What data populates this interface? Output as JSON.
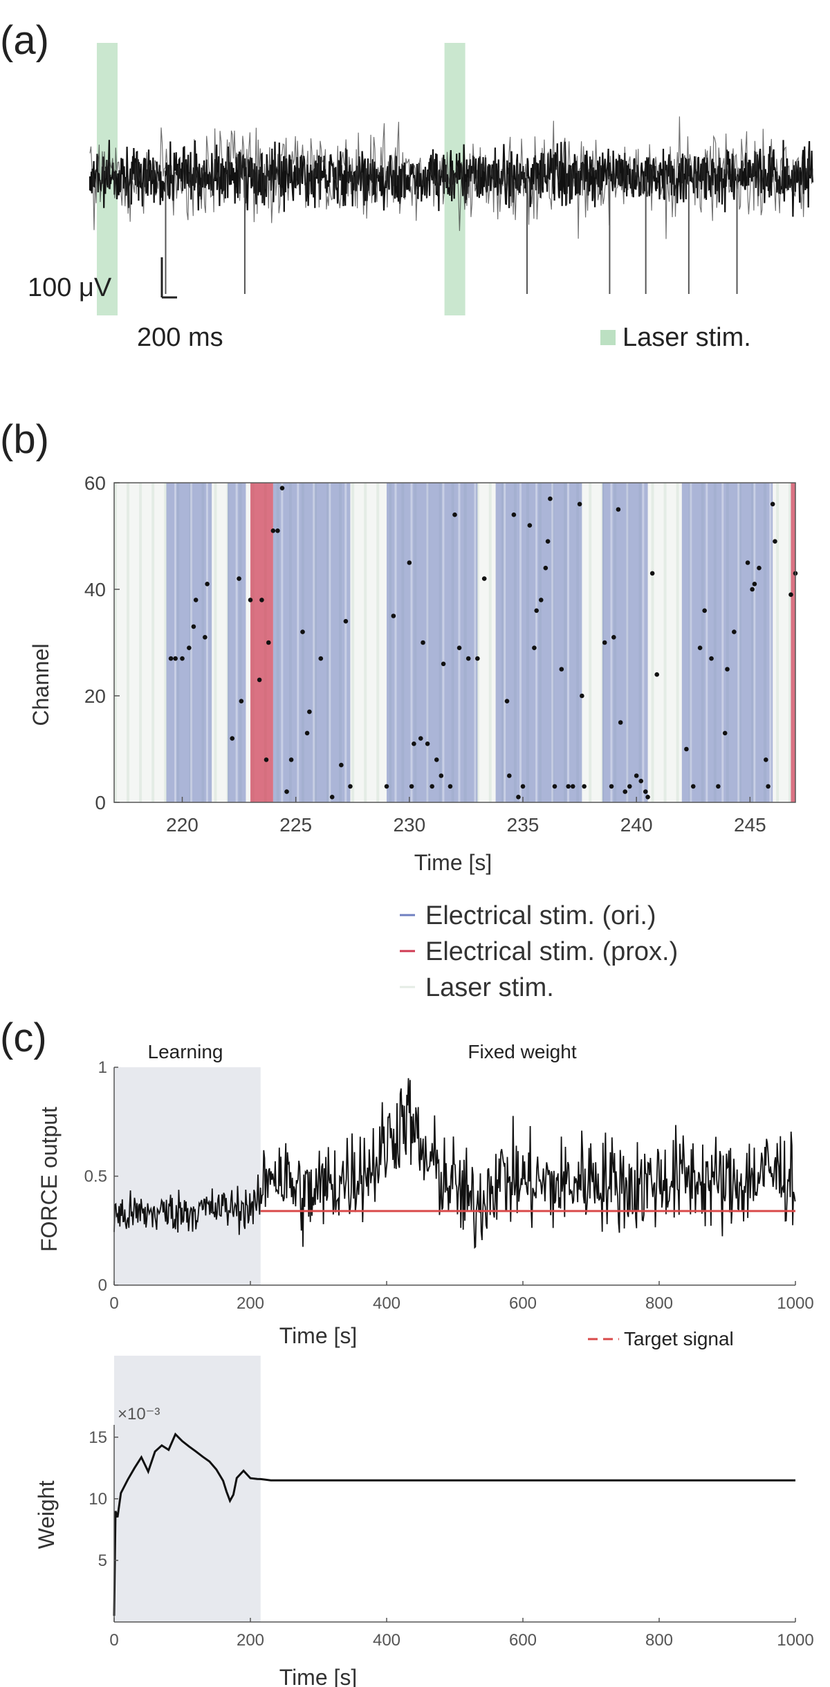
{
  "panels": {
    "a": {
      "label": "(a)"
    },
    "b": {
      "label": "(b)"
    },
    "c": {
      "label": "(c)"
    }
  },
  "colors": {
    "trace": "#111111",
    "laser": "#9fd3a8",
    "elec_ori": "#6f7fc0",
    "elec_prox": "#cf3a52",
    "laser_light": "#e4ece5",
    "target": "#d94a4a",
    "learning_bg": "#e7e9ee"
  },
  "chart_data": [
    {
      "id": "a",
      "type": "line",
      "description_units": "voltage trace",
      "scale_bar": {
        "voltage_label": "100 μV",
        "time_label": "200 ms"
      },
      "laser_stim_label": "Laser stim.",
      "laser_stim_times_ms": [
        0,
        2020
      ],
      "spike_times_ms": [
        440,
        900,
        2540,
        3020,
        3230,
        3480,
        3760
      ],
      "duration_ms": 4200
    },
    {
      "id": "b",
      "type": "scatter",
      "xlabel": "Time [s]",
      "ylabel": "Channel",
      "xlim": [
        217,
        247
      ],
      "ylim": [
        0,
        60
      ],
      "xticks": [
        220,
        225,
        230,
        235,
        240,
        245
      ],
      "yticks": [
        0,
        20,
        40,
        60
      ],
      "legend": [
        {
          "label": "Electrical stim. (ori.)",
          "color_key": "elec_ori"
        },
        {
          "label": "Electrical stim. (prox.)",
          "color_key": "elec_prox"
        },
        {
          "label": "Laser stim.",
          "color_key": "laser_light"
        }
      ],
      "elec_ori_blocks": [
        [
          219.3,
          221.3
        ],
        [
          222.0,
          222.8
        ],
        [
          224.0,
          227.4
        ],
        [
          229.0,
          233.0
        ],
        [
          233.8,
          237.6
        ],
        [
          238.5,
          240.5
        ],
        [
          242.0,
          246.0
        ]
      ],
      "elec_prox_blocks": [
        [
          223.0,
          224.0
        ],
        [
          246.8,
          247.0
        ]
      ],
      "points": [
        [
          219.5,
          27
        ],
        [
          219.7,
          27
        ],
        [
          220.0,
          27
        ],
        [
          220.3,
          29
        ],
        [
          220.5,
          33
        ],
        [
          220.6,
          38
        ],
        [
          221.0,
          31
        ],
        [
          221.1,
          41
        ],
        [
          222.2,
          12
        ],
        [
          222.5,
          42
        ],
        [
          222.6,
          19
        ],
        [
          223.0,
          38
        ],
        [
          223.4,
          23
        ],
        [
          223.5,
          38
        ],
        [
          223.7,
          8
        ],
        [
          223.8,
          30
        ],
        [
          224.0,
          51
        ],
        [
          224.2,
          51
        ],
        [
          224.4,
          59
        ],
        [
          224.6,
          2
        ],
        [
          224.8,
          8
        ],
        [
          225.3,
          32
        ],
        [
          225.5,
          13
        ],
        [
          225.6,
          17
        ],
        [
          226.1,
          27
        ],
        [
          226.6,
          1
        ],
        [
          227.0,
          7
        ],
        [
          227.2,
          34
        ],
        [
          227.4,
          3
        ],
        [
          229.0,
          3
        ],
        [
          229.3,
          35
        ],
        [
          230.0,
          45
        ],
        [
          230.1,
          3
        ],
        [
          230.2,
          11
        ],
        [
          230.5,
          12
        ],
        [
          230.6,
          30
        ],
        [
          230.8,
          11
        ],
        [
          231.0,
          3
        ],
        [
          231.2,
          8
        ],
        [
          231.4,
          5
        ],
        [
          231.5,
          26
        ],
        [
          231.8,
          3
        ],
        [
          232.0,
          54
        ],
        [
          232.2,
          29
        ],
        [
          232.6,
          27
        ],
        [
          233.0,
          27
        ],
        [
          233.3,
          42
        ],
        [
          234.3,
          19
        ],
        [
          234.4,
          5
        ],
        [
          234.6,
          54
        ],
        [
          234.8,
          1
        ],
        [
          235.0,
          3
        ],
        [
          235.3,
          52
        ],
        [
          235.5,
          29
        ],
        [
          235.6,
          36
        ],
        [
          235.8,
          38
        ],
        [
          236.0,
          44
        ],
        [
          236.1,
          49
        ],
        [
          236.2,
          57
        ],
        [
          236.4,
          3
        ],
        [
          236.7,
          25
        ],
        [
          237.0,
          3
        ],
        [
          237.2,
          3
        ],
        [
          237.5,
          56
        ],
        [
          237.6,
          20
        ],
        [
          237.7,
          3
        ],
        [
          238.6,
          30
        ],
        [
          238.9,
          3
        ],
        [
          239.0,
          31
        ],
        [
          239.2,
          55
        ],
        [
          239.3,
          15
        ],
        [
          239.5,
          2
        ],
        [
          239.7,
          3
        ],
        [
          240.0,
          5
        ],
        [
          240.2,
          4
        ],
        [
          240.4,
          2
        ],
        [
          240.5,
          1
        ],
        [
          240.7,
          43
        ],
        [
          240.9,
          24
        ],
        [
          242.2,
          10
        ],
        [
          242.5,
          3
        ],
        [
          242.8,
          29
        ],
        [
          243.0,
          36
        ],
        [
          243.3,
          27
        ],
        [
          243.6,
          3
        ],
        [
          243.9,
          13
        ],
        [
          244.0,
          25
        ],
        [
          244.3,
          32
        ],
        [
          244.9,
          45
        ],
        [
          245.1,
          40
        ],
        [
          245.2,
          41
        ],
        [
          245.4,
          44
        ],
        [
          245.7,
          8
        ],
        [
          245.8,
          3
        ],
        [
          246.0,
          56
        ],
        [
          246.1,
          49
        ],
        [
          246.8,
          39
        ],
        [
          247.0,
          43
        ]
      ]
    },
    {
      "id": "c-top",
      "type": "line",
      "xlabel": "Time [s]",
      "ylabel": "FORCE output",
      "xlim": [
        0,
        1000
      ],
      "ylim": [
        0,
        1
      ],
      "xticks": [
        0,
        200,
        400,
        600,
        800,
        1000
      ],
      "yticks": [
        "0",
        "0.5",
        "1"
      ],
      "phase_labels": {
        "learning": "Learning",
        "fixed": "Fixed weight"
      },
      "learning_end_s": 215,
      "target_value": 0.34,
      "target_label": "Target signal",
      "series_anchor": [
        [
          0,
          0.32
        ],
        [
          50,
          0.33
        ],
        [
          100,
          0.34
        ],
        [
          150,
          0.35
        ],
        [
          210,
          0.36
        ],
        [
          230,
          0.55
        ],
        [
          280,
          0.4
        ],
        [
          330,
          0.48
        ],
        [
          380,
          0.55
        ],
        [
          410,
          0.7
        ],
        [
          430,
          0.8
        ],
        [
          450,
          0.6
        ],
        [
          500,
          0.45
        ],
        [
          530,
          0.35
        ],
        [
          560,
          0.5
        ],
        [
          600,
          0.48
        ],
        [
          650,
          0.45
        ],
        [
          700,
          0.5
        ],
        [
          760,
          0.45
        ],
        [
          800,
          0.48
        ],
        [
          850,
          0.5
        ],
        [
          900,
          0.45
        ],
        [
          960,
          0.52
        ],
        [
          1000,
          0.5
        ]
      ]
    },
    {
      "id": "c-bottom",
      "type": "line",
      "xlabel": "Time [s]",
      "ylabel": "Weight",
      "xlim": [
        0,
        1000
      ],
      "ylim": [
        0,
        16
      ],
      "multiplier_label": "×10⁻³",
      "xticks": [
        0,
        200,
        400,
        600,
        800,
        1000
      ],
      "yticks": [
        5,
        10,
        15
      ],
      "series": [
        {
          "x": [
            0,
            2,
            5,
            10,
            20,
            30,
            40,
            50,
            60,
            70,
            80,
            90,
            100,
            110,
            120,
            130,
            140,
            150,
            160,
            165,
            170,
            175,
            180,
            190,
            200,
            210,
            215,
            230,
            1000
          ],
          "y": [
            0.5,
            9,
            8.5,
            10.5,
            11.5,
            12.5,
            13,
            12.5,
            14,
            14.5,
            14,
            15,
            14.5,
            14.3,
            14,
            13.5,
            13,
            12.5,
            11.5,
            10.5,
            10,
            10.3,
            11.5,
            12,
            11.6,
            11.5,
            11.6,
            11.5,
            11.5
          ]
        }
      ]
    }
  ]
}
